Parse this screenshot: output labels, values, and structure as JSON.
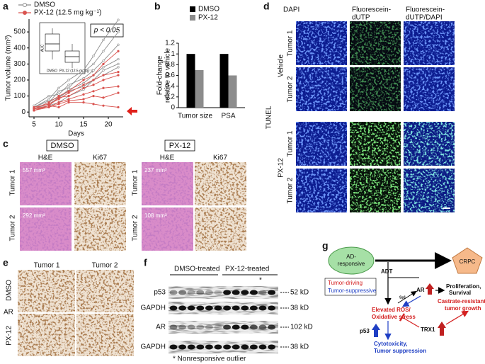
{
  "panel_labels": [
    "a",
    "b",
    "c",
    "d",
    "e",
    "f",
    "g"
  ],
  "chart_data": [
    {
      "type": "line",
      "ylabel": "Tumor volume (mm³)",
      "xlabel": "Days",
      "annotation": "p < 0.05",
      "x": [
        5,
        8,
        10,
        12,
        15,
        17,
        19,
        22
      ],
      "xlim": [
        4,
        23
      ],
      "xticks": [
        5,
        10,
        15,
        20
      ],
      "ylim": [
        -30,
        580
      ],
      "yticks": [
        0,
        100,
        200,
        300,
        400,
        500
      ],
      "series": [
        {
          "name": "DMSO",
          "color": "#8c8c8c",
          "lines": [
            [
              30,
              80,
              150,
              200,
              260,
              350,
              450,
              575
            ],
            [
              20,
              60,
              130,
              150,
              250,
              300,
              380,
              500
            ],
            [
              40,
              100,
              110,
              170,
              210,
              260,
              320,
              420
            ],
            [
              20,
              50,
              90,
              140,
              180,
              230,
              280,
              330
            ],
            [
              30,
              70,
              90,
              130,
              160,
              200,
              260,
              300
            ],
            [
              10,
              40,
              60,
              100,
              140,
              200,
              230,
              280
            ]
          ]
        },
        {
          "name": "PX-12 (12.5 mg kg⁻¹)",
          "color": "#d9534f",
          "lines": [
            [
              20,
              60,
              100,
              130,
              200,
              230,
              300,
              380
            ],
            [
              30,
              50,
              80,
              120,
              170,
              200,
              230,
              250
            ],
            [
              10,
              40,
              90,
              100,
              150,
              170,
              200,
              230
            ],
            [
              20,
              30,
              60,
              80,
              110,
              130,
              150,
              160
            ],
            [
              10,
              30,
              50,
              70,
              80,
              100,
              90,
              120
            ],
            [
              20,
              40,
              30,
              60,
              60,
              50,
              40,
              30
            ]
          ]
        }
      ],
      "inset": {
        "ylabel": "AUC",
        "categories": [
          "DMSO",
          "PX-12 (12.5 mg kg⁻¹)"
        ]
      }
    },
    {
      "type": "bar",
      "ylabel": [
        "Fold-change",
        "relative to vehicle"
      ],
      "categories": [
        "Tumor size",
        "PSA"
      ],
      "ylim": [
        0,
        1.2
      ],
      "yticks": [
        0,
        0.2,
        0.4,
        0.6,
        0.8,
        1,
        1.2
      ],
      "series": [
        {
          "name": "DMSO",
          "color": "#000000",
          "values": [
            1,
            1
          ]
        },
        {
          "name": "PX-12",
          "color": "#8c8c8c",
          "values": [
            0.7,
            0.6
          ]
        }
      ]
    }
  ],
  "panel_c": {
    "groups": [
      "DMSO",
      "PX-12"
    ],
    "columns": [
      "H&E",
      "Ki67",
      "H&E",
      "Ki67"
    ],
    "rows": [
      "Tumor 1",
      "Tumor 2",
      "Tumor 1",
      "Tumor 2"
    ],
    "volumes": [
      "557 mm³",
      "292 mm³",
      "237 mm³",
      "108 mm³"
    ]
  },
  "panel_d": {
    "columns": [
      [
        "DAPI"
      ],
      [
        "Fluorescein-",
        "dUTP"
      ],
      [
        "Fluorescein-",
        "dUTP/DAPI"
      ]
    ],
    "groups": [
      "Vehicle",
      "PX-12"
    ],
    "side_label": "TUNEL",
    "rows": [
      "Tumor 1",
      "Tumor 2",
      "Tumor 1",
      "Tumor 2"
    ]
  },
  "panel_e": {
    "columns": [
      "Tumor 1",
      "Tumor  2"
    ],
    "rows": [
      "DMSO",
      "AR",
      "PX-12"
    ]
  },
  "panel_f": {
    "groups": [
      "DMSO-treated",
      "PX-12-treated"
    ],
    "rows": [
      "p53",
      "GAPDH",
      "AR",
      "GAPDH"
    ],
    "sizes": [
      "52 kD",
      "38 kD",
      "102 kD",
      "38 kD"
    ],
    "marker": "*",
    "footnote": "* Nonresponsive outlier"
  },
  "panel_g": {
    "start": [
      "AD-",
      "responsive"
    ],
    "end": "CRPC",
    "treatment": "ADT",
    "legend": [
      "Tumor-driving",
      "Tumor-suppressive"
    ],
    "sp1": "Sp1",
    "ar": "AR",
    "outcome": [
      "Proliferation,",
      "Survival"
    ],
    "crpc_growth": [
      "Castrate-resistant",
      "tumor growth"
    ],
    "ros": [
      "Elevated ROS/",
      "Oxidative stress"
    ],
    "p53": "p53",
    "trx1": "TRX1",
    "suppression": [
      "Cytotoxicity,",
      "Tumor suppression"
    ]
  }
}
